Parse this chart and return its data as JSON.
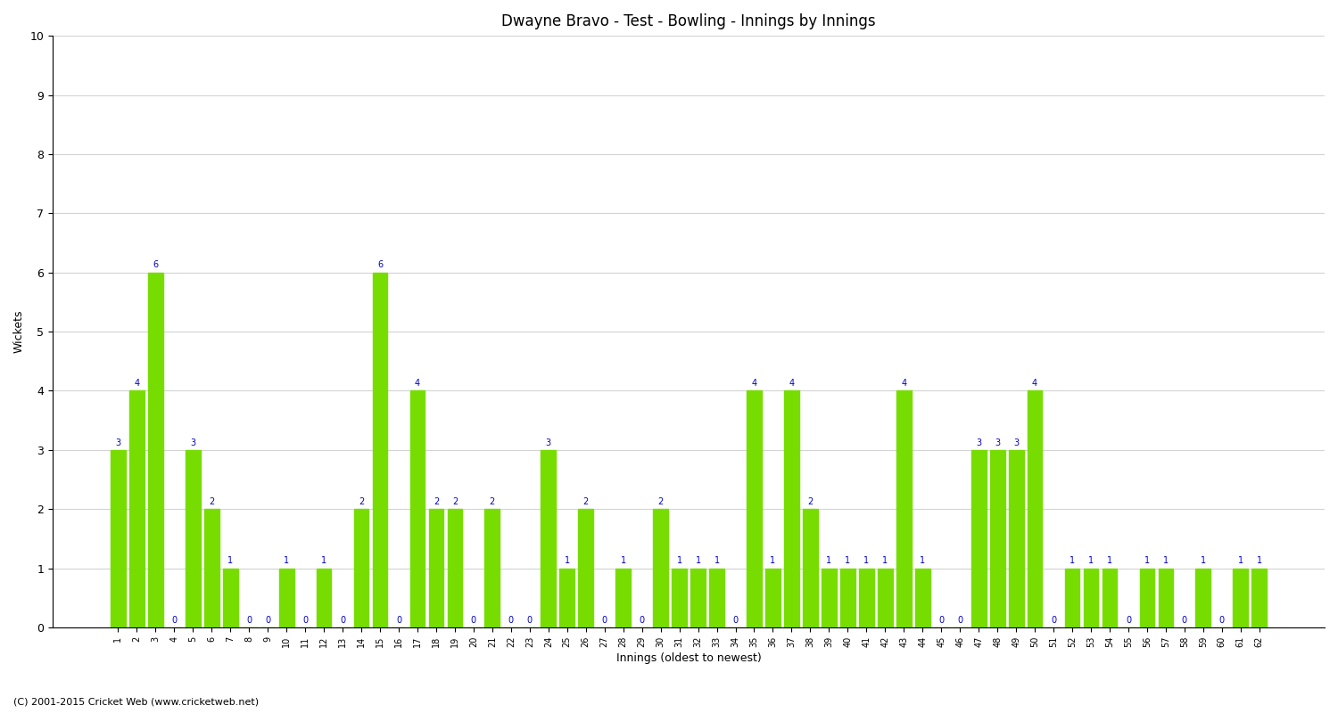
{
  "title": "Dwayne Bravo - Test - Bowling - Innings by Innings",
  "xlabel": "Innings (oldest to newest)",
  "ylabel": "Wickets",
  "ylim": [
    0,
    10
  ],
  "yticks": [
    0,
    1,
    2,
    3,
    4,
    5,
    6,
    7,
    8,
    9,
    10
  ],
  "bar_color": "#77DD00",
  "label_color": "#0000CC",
  "footer": "(C) 2001-2015 Cricket Web (www.cricketweb.net)",
  "categories": [
    "1",
    "2",
    "3",
    "4",
    "5",
    "6",
    "7",
    "8",
    "9",
    "10",
    "11",
    "12",
    "13",
    "14",
    "15",
    "16",
    "17",
    "18",
    "19",
    "20",
    "21",
    "22",
    "23",
    "24",
    "25",
    "26",
    "27",
    "28",
    "29",
    "30",
    "31",
    "32",
    "33",
    "34",
    "35",
    "36",
    "37",
    "38",
    "39",
    "40",
    "41",
    "42",
    "43",
    "44",
    "45",
    "46",
    "47",
    "48",
    "49",
    "50",
    "51",
    "52",
    "53",
    "54",
    "55",
    "56",
    "57",
    "58",
    "59",
    "60",
    "61",
    "62"
  ],
  "values": [
    3,
    4,
    6,
    0,
    3,
    2,
    1,
    0,
    0,
    1,
    0,
    1,
    0,
    2,
    6,
    0,
    4,
    2,
    2,
    0,
    2,
    0,
    0,
    3,
    1,
    2,
    0,
    1,
    0,
    2,
    1,
    1,
    1,
    0,
    4,
    1,
    4,
    2,
    1,
    1,
    1,
    1,
    4,
    1,
    0,
    0,
    3,
    3,
    3,
    4,
    0,
    1,
    1,
    1,
    0,
    1,
    1,
    0,
    1,
    0,
    1,
    1
  ]
}
